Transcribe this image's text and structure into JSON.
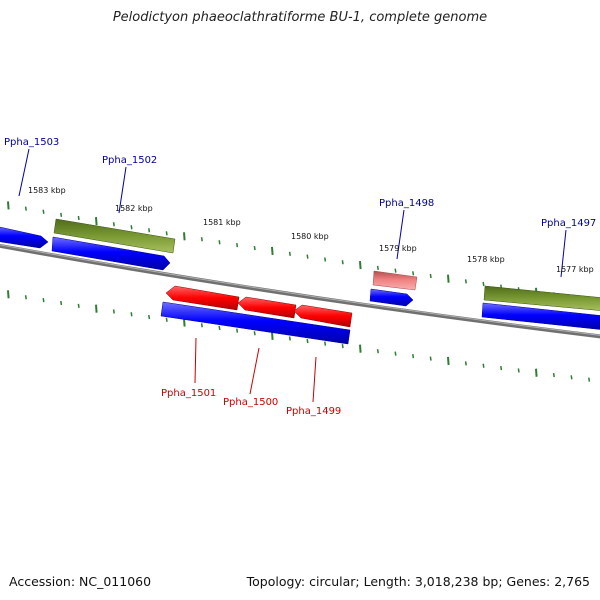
{
  "title": "Pelodictyon phaeoclathratiforme BU-1, complete genome",
  "footer": {
    "accession": "Accession: NC_011060",
    "topology": "Topology: circular; Length: 3,018,238 bp; Genes: 2,765"
  },
  "colors": {
    "backbone": "#808080",
    "tick": "#2e7d32",
    "cds": "#0000ff",
    "gene": "#6b8e23",
    "reverse_gene": "#ff0000",
    "pseudo": "#f08080",
    "label_forward": "#000099",
    "label_reverse": "#cc0000"
  },
  "scale_labels": [
    "1583 kbp",
    "1582 kbp",
    "1581 kbp",
    "1580 kbp",
    "1579 kbp",
    "1578 kbp",
    "1577 kbp"
  ],
  "genes": [
    {
      "name": "Ppha_1503",
      "strand": "+"
    },
    {
      "name": "Ppha_1502",
      "strand": "+"
    },
    {
      "name": "Ppha_1501",
      "strand": "-"
    },
    {
      "name": "Ppha_1500",
      "strand": "-"
    },
    {
      "name": "Ppha_1499",
      "strand": "-"
    },
    {
      "name": "Ppha_1498",
      "strand": "+"
    },
    {
      "name": "Ppha_1497",
      "strand": "+"
    }
  ]
}
